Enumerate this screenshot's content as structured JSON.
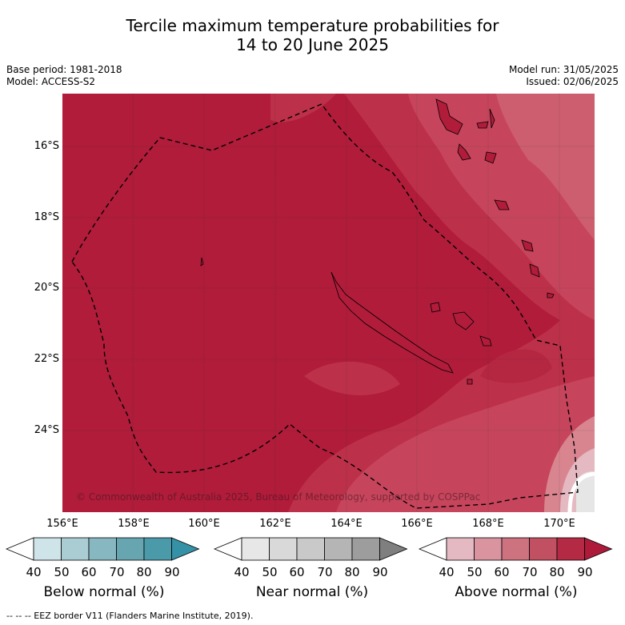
{
  "title_line1": "Tercile maximum temperature probabilities for",
  "title_line2": "14 to 20 June 2025",
  "base_period": "Base period: 1981-2018",
  "model": "Model: ACCESS-S2",
  "model_run": "Model run: 31/05/2025",
  "issued": "Issued: 02/06/2025",
  "lat_labels": [
    "16°S",
    "18°S",
    "20°S",
    "22°S",
    "24°S"
  ],
  "lon_labels": [
    "156°E",
    "158°E",
    "160°E",
    "162°E",
    "164°E",
    "166°E",
    "168°E",
    "170°E"
  ],
  "copyright": "© Commonwealth of Australia 2025, Bureau of Meteorology, supported by COSPPac",
  "colorbars": [
    {
      "title": "Below normal (%)",
      "ticks": [
        "40",
        "50",
        "60",
        "70",
        "80",
        "90"
      ],
      "colors": [
        "#ffffff",
        "#cfe4e8",
        "#aacdd3",
        "#87b8c2",
        "#67a5b1",
        "#4a9aaa",
        "#3591a5"
      ]
    },
    {
      "title": "Near normal (%)",
      "ticks": [
        "40",
        "50",
        "60",
        "70",
        "80",
        "90"
      ],
      "colors": [
        "#ffffff",
        "#e7e7e7",
        "#d9d9d9",
        "#c9c9c9",
        "#b5b5b5",
        "#9d9d9d",
        "#7f7f7f"
      ]
    },
    {
      "title": "Above normal (%)",
      "ticks": [
        "40",
        "50",
        "60",
        "70",
        "80",
        "90"
      ],
      "colors": [
        "#ffffff",
        "#e4b9c1",
        "#d9949f",
        "#cd727f",
        "#c05062",
        "#b42a44",
        "#ad1a3a"
      ]
    }
  ],
  "footer": "--  --  -- EEZ border V11 (Flanders Marine Institute, 2019).",
  "colors": {
    "above_90": "#b01c3a",
    "above_80": "#c0394f",
    "above_70": "#cc5b6b",
    "above_60": "#d98590"
  }
}
